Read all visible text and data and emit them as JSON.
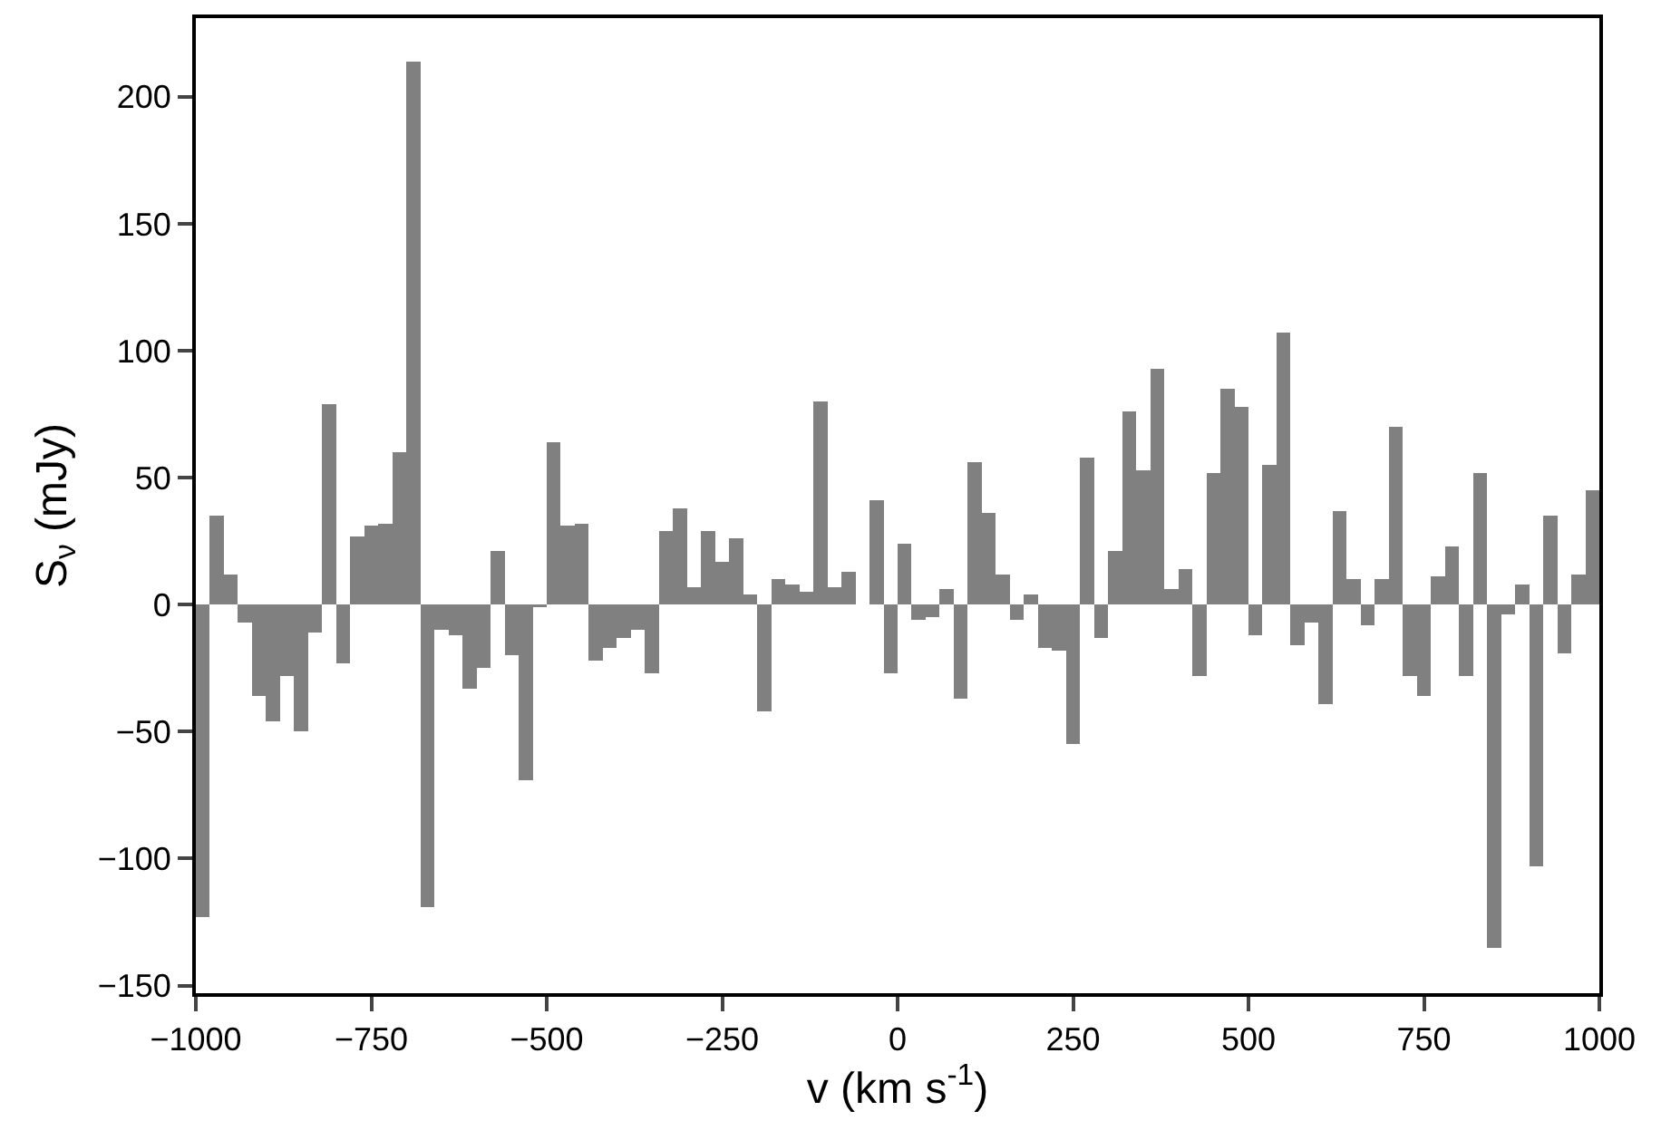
{
  "chart_data": {
    "type": "histogram",
    "xlabel": "v (km s$^{-1}$)",
    "ylabel": "S$_{ν}$ (mJy)",
    "color": "#808080",
    "bins": [
      -1000,
      -980,
      -960,
      -940,
      -920,
      -900,
      -880,
      -860,
      -840,
      -820,
      -800,
      -780,
      -760,
      -740,
      -720,
      -700,
      -680,
      -660,
      -640,
      -620,
      -600,
      -580,
      -560,
      -540,
      -520,
      -500,
      -480,
      -460,
      -440,
      -420,
      -400,
      -380,
      -360,
      -340,
      -320,
      -300,
      -280,
      -260,
      -240,
      -220,
      -200,
      -180,
      -160,
      -140,
      -120,
      -100,
      -80,
      -60,
      -40,
      -20,
      0,
      20,
      40,
      60,
      80,
      100,
      120,
      140,
      160,
      180,
      200,
      220,
      240,
      260,
      280,
      300,
      320,
      340,
      360,
      380,
      400,
      420,
      440,
      460,
      480,
      500,
      520,
      540,
      560,
      580,
      600,
      620,
      640,
      660,
      680,
      700,
      720,
      740,
      760,
      780,
      800,
      820,
      840,
      860,
      880,
      900,
      920,
      940,
      960,
      980,
      1000
    ],
    "values": [
      -123,
      35,
      12,
      -7,
      -36,
      -46,
      -28,
      -50,
      -11,
      79,
      -23,
      27,
      31,
      32,
      60,
      214,
      -119,
      -10,
      -12,
      -33,
      -25,
      21,
      -20,
      -69,
      -1,
      64,
      31,
      32,
      -22,
      -17,
      -13,
      -10,
      -27,
      29,
      38,
      7,
      29,
      17,
      26,
      4,
      -42,
      10,
      8,
      5,
      80,
      7,
      13,
      0,
      41,
      -27,
      24,
      -6,
      -5,
      6,
      -37,
      56,
      36,
      12,
      -6,
      4,
      -17,
      -18,
      -55,
      58,
      -13,
      21,
      76,
      53,
      93,
      6,
      14,
      -28,
      52,
      85,
      78,
      -12,
      55,
      107,
      -16,
      -7,
      -39,
      37,
      10,
      -8,
      10,
      70,
      -28,
      -36,
      11,
      23,
      -28,
      52,
      -135,
      -4,
      8,
      -103,
      35,
      -19,
      12,
      45
    ],
    "xlim": [
      -1000,
      1000
    ],
    "xticks": [
      {
        "value": -1000,
        "label": "−1000"
      },
      {
        "value": -750,
        "label": "−750"
      },
      {
        "value": -500,
        "label": "−500"
      },
      {
        "value": -250,
        "label": "−250"
      },
      0,
      250,
      500,
      750,
      1000
    ],
    "ylim": [
      -153,
      231
    ],
    "yticks": [
      {
        "value": -150,
        "label": "−150"
      },
      {
        "value": -100,
        "label": "−100"
      },
      {
        "value": -50,
        "label": "−50"
      },
      0,
      50,
      100,
      150,
      200
    ],
    "grid": false,
    "legend": false
  }
}
